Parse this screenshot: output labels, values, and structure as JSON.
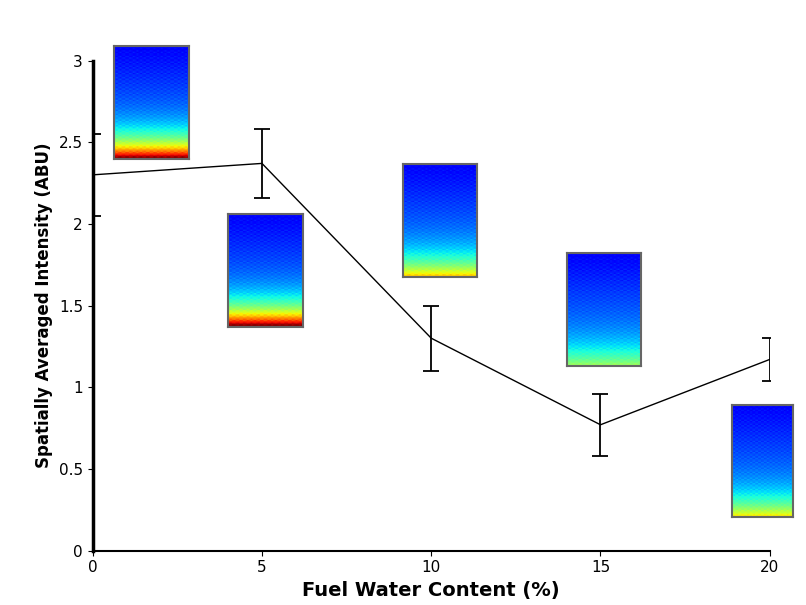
{
  "chart_data": {
    "type": "line",
    "x_label": "Fuel Water Content (%)",
    "y_label": "Spatially Averaged Intensity (ABU)",
    "x": [
      0,
      5,
      10,
      15,
      20
    ],
    "values": [
      2.3,
      2.37,
      1.3,
      0.77,
      1.17
    ],
    "error": [
      0.25,
      0.21,
      0.2,
      0.19,
      0.13
    ],
    "color": "#000000",
    "xlim": [
      0,
      20
    ],
    "xticks": [
      0,
      5,
      10,
      15,
      20
    ],
    "ylim": [
      0,
      3
    ],
    "yticks": [
      0,
      0.5,
      1,
      1.5,
      2,
      2.5,
      3
    ],
    "grid": false
  }
}
